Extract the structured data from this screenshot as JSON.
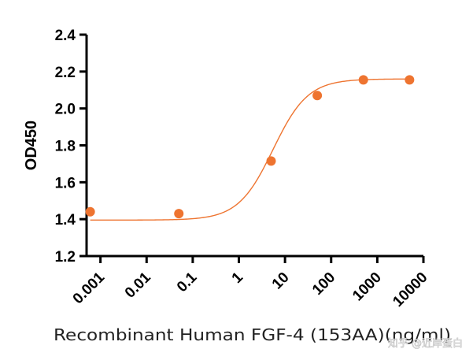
{
  "watermark": "知乎 @近岸蛋白",
  "chart_data": {
    "type": "scatter",
    "title": "",
    "xlabel": "Recombinant Human FGF-4 (153AA)(ng/ml)",
    "ylabel": "OD450",
    "x_scale": "log",
    "xlim": [
      0.0005,
      10000
    ],
    "ylim": [
      1.2,
      2.4
    ],
    "xticks": [
      "0.001",
      "0.01",
      "0.1",
      "1",
      "10",
      "100",
      "1000",
      "10000"
    ],
    "xtick_values": [
      0.001,
      0.01,
      0.1,
      1,
      10,
      100,
      1000,
      10000
    ],
    "yticks": [
      "1.2",
      "1.4",
      "1.6",
      "1.8",
      "2.0",
      "2.2",
      "2.4"
    ],
    "ytick_values": [
      1.2,
      1.4,
      1.6,
      1.8,
      2.0,
      2.2,
      2.4
    ],
    "grid": false,
    "legend": "none",
    "series": [
      {
        "color": "#ee7430",
        "x": [
          0.0006,
          0.05,
          5,
          50,
          500,
          5000
        ],
        "y": [
          1.44,
          1.43,
          1.715,
          2.07,
          2.155,
          2.155
        ]
      }
    ],
    "fit_curve": {
      "model": "4PL",
      "bottom": 1.395,
      "top": 2.16,
      "ec50": 5.5,
      "hill": 1.15,
      "color": "#ee7430"
    }
  }
}
